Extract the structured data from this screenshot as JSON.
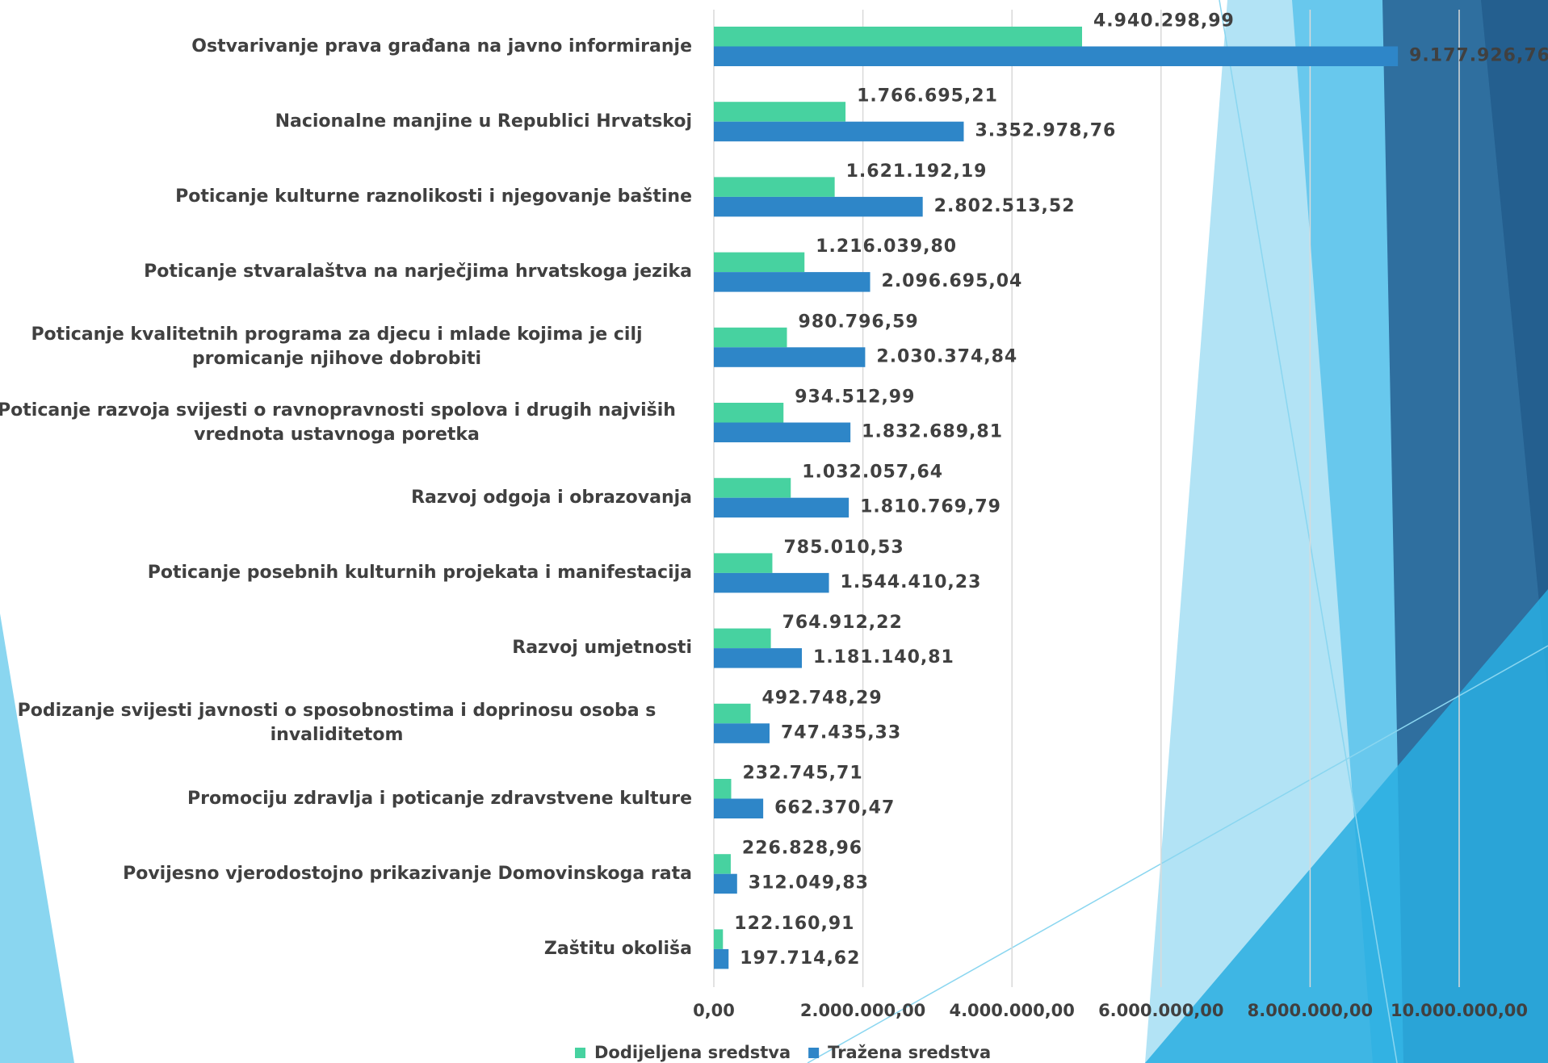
{
  "chart_data": {
    "type": "hbar",
    "categories": [
      "Ostvarivanje prava građana na javno informiranje",
      "Nacionalne manjine u Republici Hrvatskoj",
      "Poticanje kulturne raznolikosti i njegovanje baštine",
      "Poticanje stvaralaštva na narječjima hrvatskoga jezika",
      "Poticanje kvalitetnih programa za djecu i mlade kojima je cilj promicanje njihove dobrobiti",
      "Poticanje razvoja svijesti o ravnopravnosti spolova i drugih najviših vrednota ustavnoga poretka",
      "Razvoj odgoja i obrazovanja",
      "Poticanje posebnih kulturnih projekata i manifestacija",
      "Razvoj umjetnosti",
      "Podizanje svijesti javnosti o sposobnostima i doprinosu osoba s invaliditetom",
      "Promociju zdravlja i poticanje zdravstvene kulture",
      "Povijesno vjerodostojno prikazivanje Domovinskoga rata",
      "Zaštitu okoliša"
    ],
    "series": [
      {
        "name": "Dodijeljena sredstva",
        "color": "#47d2a0",
        "values": [
          4940298.99,
          1766695.21,
          1621192.19,
          1216039.8,
          980796.59,
          934512.99,
          1032057.64,
          785010.53,
          764912.22,
          492748.29,
          232745.71,
          226828.96,
          122160.91
        ],
        "value_labels": [
          "4.940.298,99",
          "1.766.695,21",
          "1.621.192,19",
          "1.216.039,80",
          "980.796,59",
          "934.512,99",
          "1.032.057,64",
          "785.010,53",
          "764.912,22",
          "492.748,29",
          "232.745,71",
          "226.828,96",
          "122.160,91"
        ]
      },
      {
        "name": "Tražena sredstva",
        "color": "#2e86c8",
        "values": [
          9177926.76,
          3352978.76,
          2802513.52,
          2096695.04,
          2030374.84,
          1832689.81,
          1810769.79,
          1544410.23,
          1181140.81,
          747435.33,
          662370.47,
          312049.83,
          197714.62
        ],
        "value_labels": [
          "9.177.926,76",
          "3.352.978,76",
          "2.802.513,52",
          "2.096.695,04",
          "2.030.374,84",
          "1.832.689,81",
          "1.810.769,79",
          "1.544.410,23",
          "1.181.140,81",
          "747.435,33",
          "662.370,47",
          "312.049,83",
          "197.714,62"
        ]
      }
    ],
    "xlim": [
      0,
      10000000
    ],
    "xticks": [
      {
        "value": 0,
        "label": "0,00"
      },
      {
        "value": 2000000,
        "label": "2.000.000,00"
      },
      {
        "value": 4000000,
        "label": "4.000.000,00"
      },
      {
        "value": 6000000,
        "label": "6.000.000,00"
      },
      {
        "value": 8000000,
        "label": "8.000.000,00"
      },
      {
        "value": 10000000,
        "label": "10.000.000,00"
      }
    ],
    "grid": true
  }
}
